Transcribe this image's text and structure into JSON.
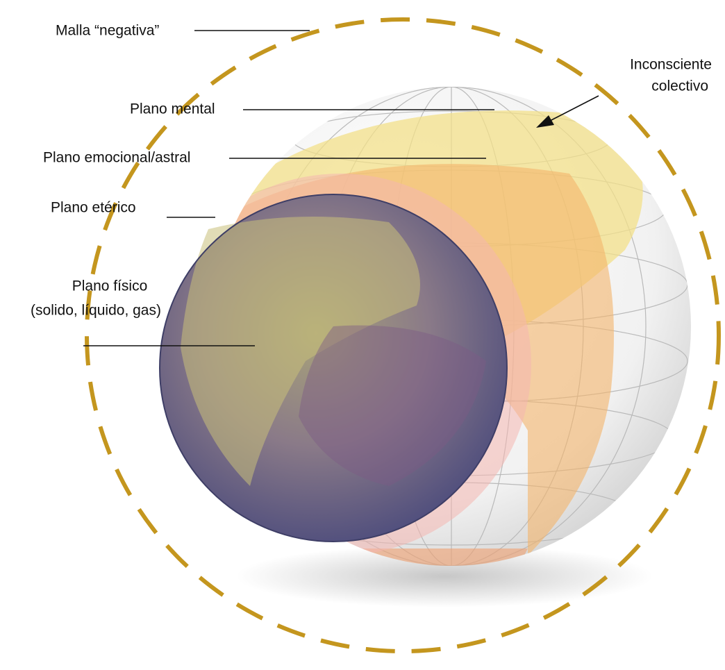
{
  "labels": [
    {
      "lines": [
        "Malla “negativa”"
      ]
    },
    {
      "lines": [
        "Inconsciente",
        "colectivo"
      ]
    },
    {
      "lines": [
        "Plano mental"
      ]
    },
    {
      "lines": [
        "Plano emocional/astral"
      ]
    },
    {
      "lines": [
        "Plano etérico"
      ]
    },
    {
      "lines": [
        "Plano físico",
        "(solido, líquido, gas)"
      ]
    }
  ]
}
